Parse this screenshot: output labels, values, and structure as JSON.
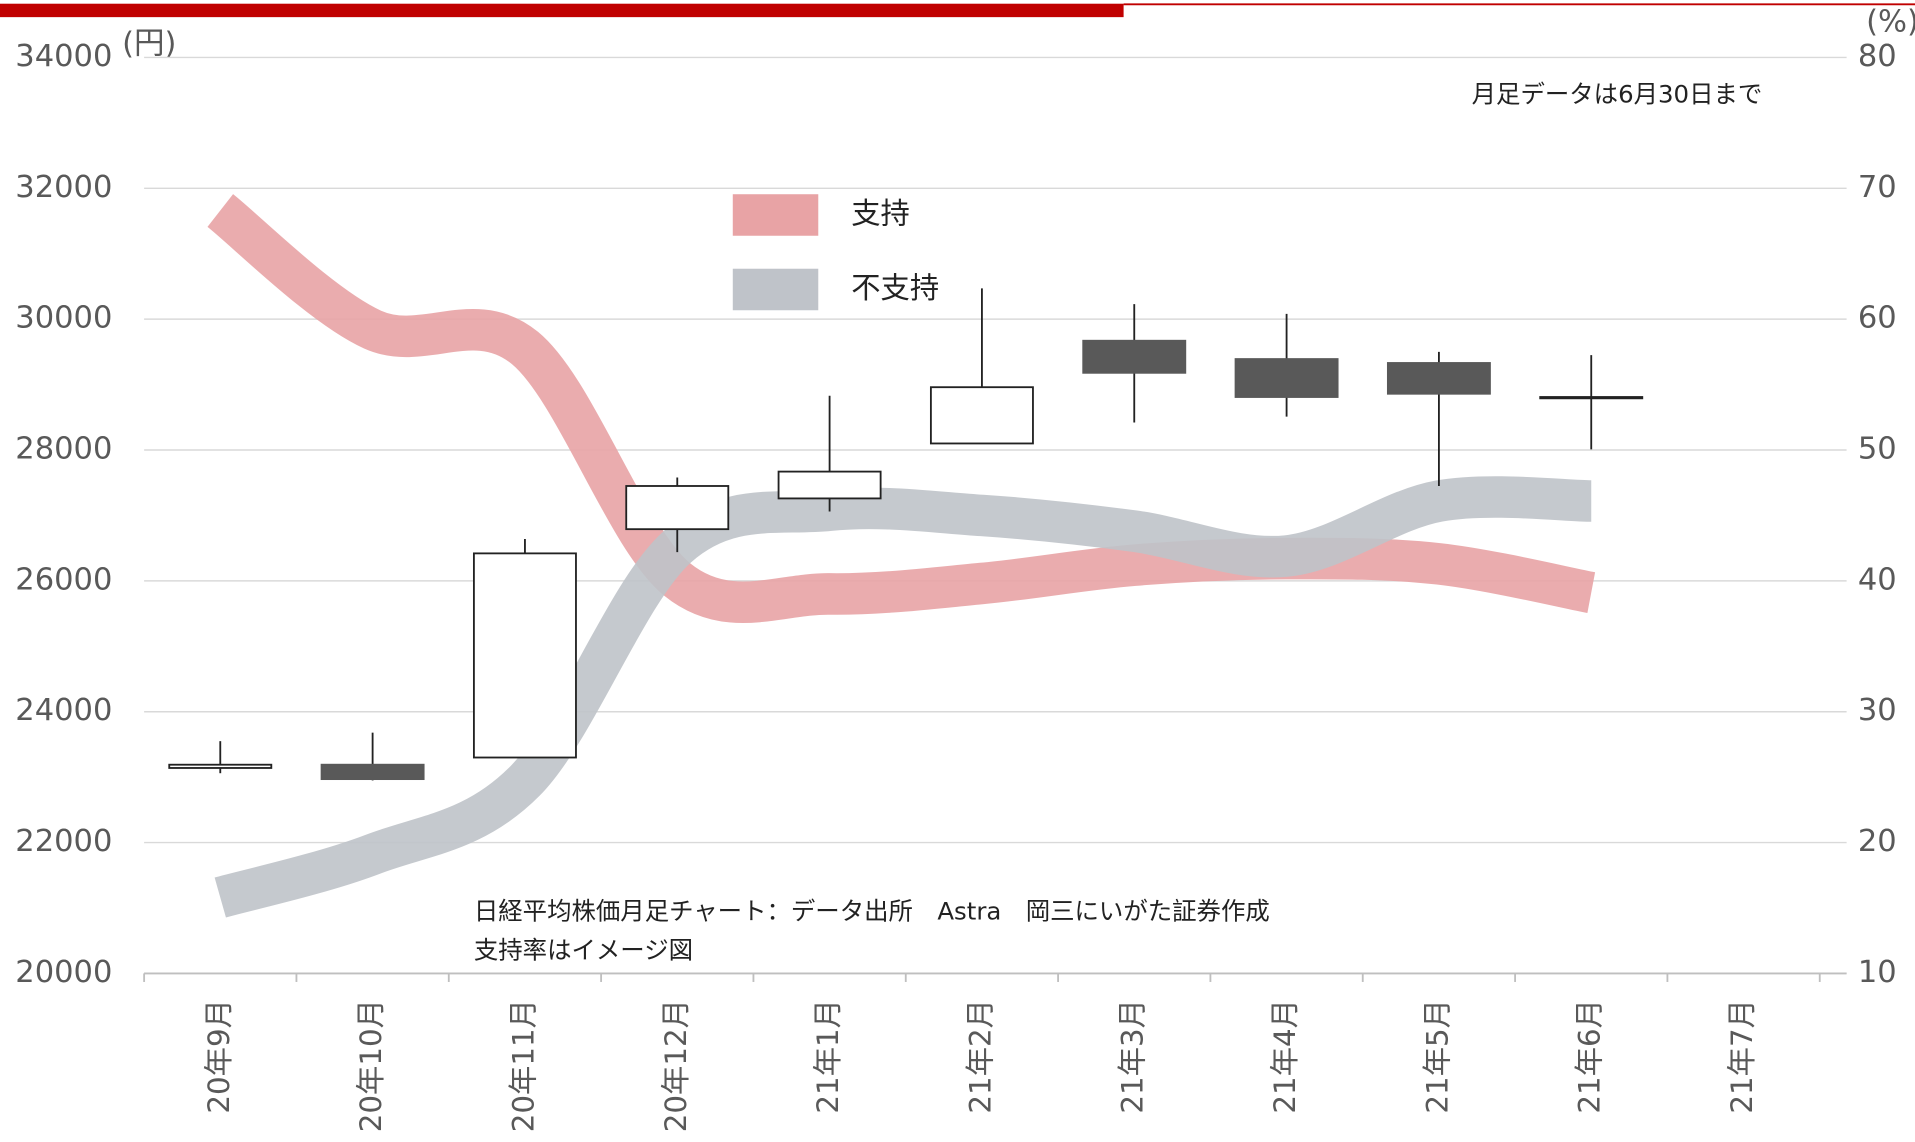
{
  "chart_data": {
    "type": "candlestick",
    "y_unit_label": "(円)",
    "y2_unit_label": "(%)",
    "annotation": "月足データは6月30日まで",
    "source_note": "日経平均株価月足チャート：データ出所　Astra　岡三にいがた証券作成",
    "image_note": "支持率はイメージ図",
    "categories": [
      "20年9月",
      "20年10月",
      "20年11月",
      "20年12月",
      "21年1月",
      "21年2月",
      "21年3月",
      "21年4月",
      "21年5月",
      "21年6月",
      "21年7月"
    ],
    "open": [
      23140,
      23190,
      23300,
      26790,
      27260,
      28100,
      29670,
      29390,
      29330,
      28790,
      null
    ],
    "high": [
      23550,
      23680,
      26640,
      27580,
      28830,
      30470,
      30230,
      30080,
      29500,
      29450,
      null
    ],
    "low": [
      23060,
      22950,
      23300,
      26440,
      27060,
      28100,
      28420,
      28510,
      27450,
      28010,
      null
    ],
    "close": [
      23190,
      22970,
      26420,
      27450,
      27670,
      28960,
      29180,
      28810,
      28860,
      28810,
      null
    ],
    "up_color": "#ffffff",
    "down_color": "#595959",
    "ylim": [
      20000,
      34000
    ],
    "yticks": [
      20000,
      22000,
      24000,
      26000,
      28000,
      30000,
      32000,
      34000
    ],
    "y2lim": [
      10,
      80
    ],
    "y2ticks": [
      10,
      20,
      30,
      40,
      50,
      60,
      70,
      80
    ],
    "grid": true,
    "series": [
      {
        "name": "支持",
        "color": "#e8a3a5",
        "axis": "y2",
        "values": [
          68.3,
          59.2,
          57.8,
          40.1,
          39.0,
          39.8,
          41.2,
          41.7,
          41.3,
          39.1,
          null
        ]
      },
      {
        "name": "不支持",
        "color": "#bfc3c9",
        "axis": "y2",
        "values": [
          15.8,
          19.1,
          24.7,
          42.6,
          45.4,
          45.0,
          43.8,
          41.9,
          46.1,
          46.1,
          null
        ]
      }
    ]
  }
}
